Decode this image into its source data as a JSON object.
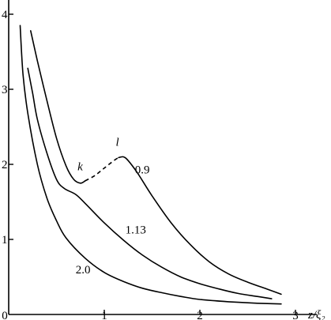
{
  "chart_data": {
    "type": "line",
    "xlabel": "z/ξ₂",
    "ylabel": "",
    "xlim": [
      0,
      3.2
    ],
    "ylim": [
      0,
      4.3
    ],
    "x_ticks": [
      "0",
      "1",
      "2",
      "3"
    ],
    "y_ticks": [
      "1",
      "2",
      "3",
      "4"
    ],
    "grid": false,
    "series": [
      {
        "name": "0.9",
        "label_at": [
          1.32,
          1.88
        ],
        "segments": [
          {
            "style": "solid",
            "points": [
              [
                0.23,
                3.78
              ],
              [
                0.3,
                3.38
              ],
              [
                0.4,
                2.85
              ],
              [
                0.5,
                2.35
              ],
              [
                0.6,
                1.98
              ],
              [
                0.68,
                1.8
              ],
              [
                0.75,
                1.75
              ],
              [
                0.8,
                1.78
              ]
            ]
          },
          {
            "style": "dashed",
            "points": [
              [
                0.8,
                1.78
              ],
              [
                0.9,
                1.85
              ],
              [
                1.0,
                1.95
              ],
              [
                1.1,
                2.05
              ],
              [
                1.15,
                2.09
              ]
            ]
          },
          {
            "style": "solid",
            "points": [
              [
                1.15,
                2.09
              ],
              [
                1.2,
                2.1
              ],
              [
                1.25,
                2.05
              ],
              [
                1.35,
                1.88
              ],
              [
                1.5,
                1.58
              ],
              [
                1.7,
                1.22
              ],
              [
                1.9,
                0.93
              ],
              [
                2.1,
                0.7
              ],
              [
                2.3,
                0.54
              ],
              [
                2.5,
                0.43
              ],
              [
                2.7,
                0.34
              ],
              [
                2.85,
                0.27
              ]
            ]
          }
        ]
      },
      {
        "name": "1.13",
        "label_at": [
          1.22,
          1.08
        ],
        "segments": [
          {
            "style": "solid",
            "points": [
              [
                0.2,
                3.28
              ],
              [
                0.25,
                2.95
              ],
              [
                0.3,
                2.6
              ],
              [
                0.4,
                2.15
              ],
              [
                0.5,
                1.8
              ],
              [
                0.58,
                1.68
              ],
              [
                0.7,
                1.6
              ],
              [
                0.8,
                1.48
              ],
              [
                1.0,
                1.22
              ],
              [
                1.2,
                0.99
              ],
              [
                1.4,
                0.79
              ],
              [
                1.6,
                0.63
              ],
              [
                1.8,
                0.5
              ],
              [
                2.0,
                0.41
              ],
              [
                2.2,
                0.34
              ],
              [
                2.4,
                0.28
              ],
              [
                2.6,
                0.24
              ],
              [
                2.75,
                0.21
              ]
            ]
          }
        ]
      },
      {
        "name": "2.0",
        "label_at": [
          0.7,
          0.55
        ],
        "segments": [
          {
            "style": "solid",
            "points": [
              [
                0.12,
                3.85
              ],
              [
                0.15,
                3.2
              ],
              [
                0.2,
                2.68
              ],
              [
                0.3,
                2.0
              ],
              [
                0.4,
                1.55
              ],
              [
                0.5,
                1.25
              ],
              [
                0.6,
                1.02
              ],
              [
                0.8,
                0.75
              ],
              [
                1.0,
                0.56
              ],
              [
                1.2,
                0.44
              ],
              [
                1.4,
                0.35
              ],
              [
                1.6,
                0.29
              ],
              [
                1.8,
                0.24
              ],
              [
                2.0,
                0.2
              ],
              [
                2.3,
                0.17
              ],
              [
                2.6,
                0.15
              ],
              [
                2.85,
                0.14
              ]
            ]
          }
        ]
      }
    ],
    "annotations": [
      {
        "text": "k",
        "at": [
          0.72,
          1.92
        ]
      },
      {
        "text": "l",
        "at": [
          1.12,
          2.25
        ]
      }
    ]
  }
}
